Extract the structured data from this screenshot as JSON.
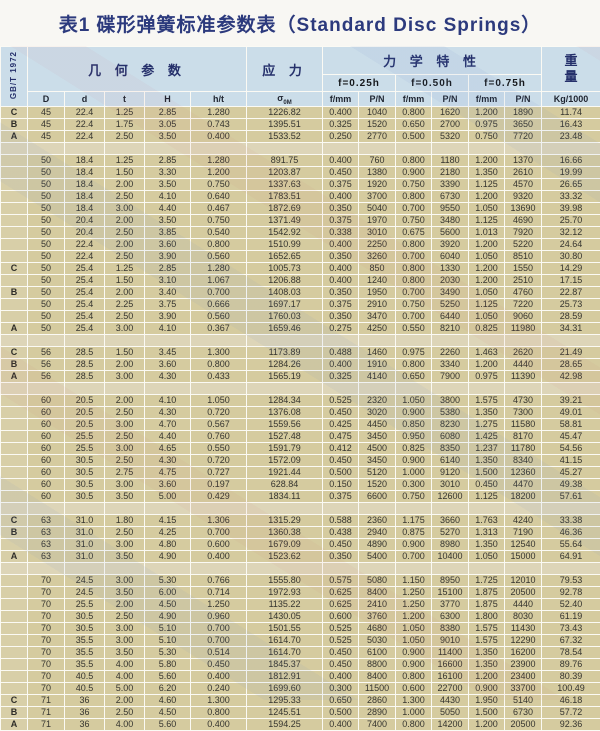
{
  "page": {
    "title": "表1 碟形弹簧标准参数表（Standard Disc Springs）"
  },
  "colors": {
    "title_navy": "#2c3a7d",
    "header_blue": "#cbdde9",
    "row_tan": "#d5cb9f",
    "gap_tan": "#ddd5b8",
    "gridline": "#fbfaf4"
  },
  "table": {
    "standard": "GB/T 1972",
    "header": {
      "geometry": "几 何 参 数",
      "stress": "应 力",
      "mechanical": "力 学 特 性",
      "weight_top": "重",
      "weight_bottom": "量",
      "deflections": [
        "f=0.25h",
        "f=0.50h",
        "f=0.75h"
      ],
      "geo_cols": [
        "D",
        "d",
        "t",
        "H",
        "h/t"
      ],
      "sigma": "σ",
      "sigma_sub": "0M",
      "mech_cols": [
        "f/mm",
        "P/N",
        "f/mm",
        "P/N",
        "f/mm",
        "P/N"
      ],
      "weight_unit": "Kg/1000"
    },
    "rows": [
      [
        "C",
        "45",
        "22.4",
        "1.25",
        "2.85",
        "1.280",
        "1226.82",
        "0.400",
        "1040",
        "0.800",
        "1620",
        "1.200",
        "1890",
        "11.74"
      ],
      [
        "B",
        "45",
        "22.4",
        "1.75",
        "3.05",
        "0.743",
        "1395.51",
        "0.325",
        "1520",
        "0.650",
        "2700",
        "0.975",
        "3650",
        "16.43"
      ],
      [
        "A",
        "45",
        "22.4",
        "2.50",
        "3.50",
        "0.400",
        "1533.52",
        "0.250",
        "2770",
        "0.500",
        "5320",
        "0.750",
        "7720",
        "23.48"
      ],
      [],
      [
        "",
        "50",
        "18.4",
        "1.25",
        "2.85",
        "1.280",
        "891.75",
        "0.400",
        "760",
        "0.800",
        "1180",
        "1.200",
        "1370",
        "16.66"
      ],
      [
        "",
        "50",
        "18.4",
        "1.50",
        "3.30",
        "1.200",
        "1203.87",
        "0.450",
        "1380",
        "0.900",
        "2180",
        "1.350",
        "2610",
        "19.99"
      ],
      [
        "",
        "50",
        "18.4",
        "2.00",
        "3.50",
        "0.750",
        "1337.63",
        "0.375",
        "1920",
        "0.750",
        "3390",
        "1.125",
        "4570",
        "26.65"
      ],
      [
        "",
        "50",
        "18.4",
        "2.50",
        "4.10",
        "0.640",
        "1783.51",
        "0.400",
        "3700",
        "0.800",
        "6730",
        "1.200",
        "9320",
        "33.32"
      ],
      [
        "",
        "50",
        "18.4",
        "3.00",
        "4.40",
        "0.467",
        "1872.69",
        "0.350",
        "5040",
        "0.700",
        "9550",
        "1.050",
        "13690",
        "39.98"
      ],
      [
        "",
        "50",
        "20.4",
        "2.00",
        "3.50",
        "0.750",
        "1371.49",
        "0.375",
        "1970",
        "0.750",
        "3480",
        "1.125",
        "4690",
        "25.70"
      ],
      [
        "",
        "50",
        "20.4",
        "2.50",
        "3.85",
        "0.540",
        "1542.92",
        "0.338",
        "3010",
        "0.675",
        "5600",
        "1.013",
        "7920",
        "32.12"
      ],
      [
        "",
        "50",
        "22.4",
        "2.00",
        "3.60",
        "0.800",
        "1510.99",
        "0.400",
        "2250",
        "0.800",
        "3920",
        "1.200",
        "5220",
        "24.64"
      ],
      [
        "",
        "50",
        "22.4",
        "2.50",
        "3.90",
        "0.560",
        "1652.65",
        "0.350",
        "3260",
        "0.700",
        "6040",
        "1.050",
        "8510",
        "30.80"
      ],
      [
        "C",
        "50",
        "25.4",
        "1.25",
        "2.85",
        "1.280",
        "1005.73",
        "0.400",
        "850",
        "0.800",
        "1330",
        "1.200",
        "1550",
        "14.29"
      ],
      [
        "",
        "50",
        "25.4",
        "1.50",
        "3.10",
        "1.067",
        "1206.88",
        "0.400",
        "1240",
        "0.800",
        "2030",
        "1.200",
        "2510",
        "17.15"
      ],
      [
        "B",
        "50",
        "25.4",
        "2.00",
        "3.40",
        "0.700",
        "1408.03",
        "0.350",
        "1950",
        "0.700",
        "3490",
        "1.050",
        "4760",
        "22.87"
      ],
      [
        "",
        "50",
        "25.4",
        "2.25",
        "3.75",
        "0.666",
        "1697.17",
        "0.375",
        "2910",
        "0.750",
        "5250",
        "1.125",
        "7220",
        "25.73"
      ],
      [
        "",
        "50",
        "25.4",
        "2.50",
        "3.90",
        "0.560",
        "1760.03",
        "0.350",
        "3470",
        "0.700",
        "6440",
        "1.050",
        "9060",
        "28.59"
      ],
      [
        "A",
        "50",
        "25.4",
        "3.00",
        "4.10",
        "0.367",
        "1659.46",
        "0.275",
        "4250",
        "0.550",
        "8210",
        "0.825",
        "11980",
        "34.31"
      ],
      [],
      [
        "C",
        "56",
        "28.5",
        "1.50",
        "3.45",
        "1.300",
        "1173.89",
        "0.488",
        "1460",
        "0.975",
        "2260",
        "1.463",
        "2620",
        "21.49"
      ],
      [
        "B",
        "56",
        "28.5",
        "2.00",
        "3.60",
        "0.800",
        "1284.26",
        "0.400",
        "1910",
        "0.800",
        "3340",
        "1.200",
        "4440",
        "28.65"
      ],
      [
        "A",
        "56",
        "28.5",
        "3.00",
        "4.30",
        "0.433",
        "1565.19",
        "0.325",
        "4140",
        "0.650",
        "7900",
        "0.975",
        "11390",
        "42.98"
      ],
      [],
      [
        "",
        "60",
        "20.5",
        "2.00",
        "4.10",
        "1.050",
        "1284.34",
        "0.525",
        "2320",
        "1.050",
        "3800",
        "1.575",
        "4730",
        "39.21"
      ],
      [
        "",
        "60",
        "20.5",
        "2.50",
        "4.30",
        "0.720",
        "1376.08",
        "0.450",
        "3020",
        "0.900",
        "5380",
        "1.350",
        "7300",
        "49.01"
      ],
      [
        "",
        "60",
        "20.5",
        "3.00",
        "4.70",
        "0.567",
        "1559.56",
        "0.425",
        "4450",
        "0.850",
        "8230",
        "1.275",
        "11580",
        "58.81"
      ],
      [
        "",
        "60",
        "25.5",
        "2.50",
        "4.40",
        "0.760",
        "1527.48",
        "0.475",
        "3450",
        "0.950",
        "6080",
        "1.425",
        "8170",
        "45.47"
      ],
      [
        "",
        "60",
        "25.5",
        "3.00",
        "4.65",
        "0.550",
        "1591.79",
        "0.412",
        "4500",
        "0.825",
        "8350",
        "1.237",
        "11780",
        "54.56"
      ],
      [
        "",
        "60",
        "30.5",
        "2.50",
        "4.30",
        "0.720",
        "1572.09",
        "0.450",
        "3450",
        "0.900",
        "6140",
        "1.350",
        "8340",
        "41.15"
      ],
      [
        "",
        "60",
        "30.5",
        "2.75",
        "4.75",
        "0.727",
        "1921.44",
        "0.500",
        "5120",
        "1.000",
        "9120",
        "1.500",
        "12360",
        "45.27"
      ],
      [
        "",
        "60",
        "30.5",
        "3.00",
        "3.60",
        "0.197",
        "628.84",
        "0.150",
        "1520",
        "0.300",
        "3010",
        "0.450",
        "4470",
        "49.38"
      ],
      [
        "",
        "60",
        "30.5",
        "3.50",
        "5.00",
        "0.429",
        "1834.11",
        "0.375",
        "6600",
        "0.750",
        "12600",
        "1.125",
        "18200",
        "57.61"
      ],
      [],
      [
        "C",
        "63",
        "31.0",
        "1.80",
        "4.15",
        "1.306",
        "1315.29",
        "0.588",
        "2360",
        "1.175",
        "3660",
        "1.763",
        "4240",
        "33.38"
      ],
      [
        "B",
        "63",
        "31.0",
        "2.50",
        "4.25",
        "0.700",
        "1360.38",
        "0.438",
        "2940",
        "0.875",
        "5270",
        "1.313",
        "7190",
        "46.36"
      ],
      [
        "",
        "63",
        "31.0",
        "3.00",
        "4.80",
        "0.600",
        "1679.09",
        "0.450",
        "4890",
        "0.900",
        "8980",
        "1.350",
        "12540",
        "55.64"
      ],
      [
        "A",
        "63",
        "31.0",
        "3.50",
        "4.90",
        "0.400",
        "1523.62",
        "0.350",
        "5400",
        "0.700",
        "10400",
        "1.050",
        "15000",
        "64.91"
      ],
      [],
      [
        "",
        "70",
        "24.5",
        "3.00",
        "5.30",
        "0.766",
        "1555.80",
        "0.575",
        "5080",
        "1.150",
        "8950",
        "1.725",
        "12010",
        "79.53"
      ],
      [
        "",
        "70",
        "24.5",
        "3.50",
        "6.00",
        "0.714",
        "1972.93",
        "0.625",
        "8400",
        "1.250",
        "15100",
        "1.875",
        "20500",
        "92.78"
      ],
      [
        "",
        "70",
        "25.5",
        "2.00",
        "4.50",
        "1.250",
        "1135.22",
        "0.625",
        "2410",
        "1.250",
        "3770",
        "1.875",
        "4440",
        "52.40"
      ],
      [
        "",
        "70",
        "30.5",
        "2.50",
        "4.90",
        "0.960",
        "1430.05",
        "0.600",
        "3760",
        "1.200",
        "6300",
        "1.800",
        "8030",
        "61.19"
      ],
      [
        "",
        "70",
        "30.5",
        "3.00",
        "5.10",
        "0.700",
        "1501.55",
        "0.525",
        "4680",
        "1.050",
        "8380",
        "1.575",
        "11430",
        "73.43"
      ],
      [
        "",
        "70",
        "35.5",
        "3.00",
        "5.10",
        "0.700",
        "1614.70",
        "0.525",
        "5030",
        "1.050",
        "9010",
        "1.575",
        "12290",
        "67.32"
      ],
      [
        "",
        "70",
        "35.5",
        "3.50",
        "5.30",
        "0.514",
        "1614.70",
        "0.450",
        "6100",
        "0.900",
        "11400",
        "1.350",
        "16200",
        "78.54"
      ],
      [
        "",
        "70",
        "35.5",
        "4.00",
        "5.80",
        "0.450",
        "1845.37",
        "0.450",
        "8800",
        "0.900",
        "16600",
        "1.350",
        "23900",
        "89.76"
      ],
      [
        "",
        "70",
        "40.5",
        "4.00",
        "5.60",
        "0.400",
        "1812.91",
        "0.400",
        "8400",
        "0.800",
        "16100",
        "1.200",
        "23400",
        "80.39"
      ],
      [
        "",
        "70",
        "40.5",
        "5.00",
        "6.20",
        "0.240",
        "1699.60",
        "0.300",
        "11500",
        "0.600",
        "22700",
        "0.900",
        "33700",
        "100.49"
      ],
      [
        "C",
        "71",
        "36",
        "2.00",
        "4.60",
        "1.300",
        "1295.33",
        "0.650",
        "2860",
        "1.300",
        "4430",
        "1.950",
        "5140",
        "46.18"
      ],
      [
        "B",
        "71",
        "36",
        "2.50",
        "4.50",
        "0.800",
        "1245.51",
        "0.500",
        "2890",
        "1.000",
        "5050",
        "1.500",
        "6730",
        "57.72"
      ],
      [
        "A",
        "71",
        "36",
        "4.00",
        "5.60",
        "0.400",
        "1594.25",
        "0.400",
        "7400",
        "0.800",
        "14200",
        "1.200",
        "20500",
        "92.36"
      ]
    ]
  }
}
